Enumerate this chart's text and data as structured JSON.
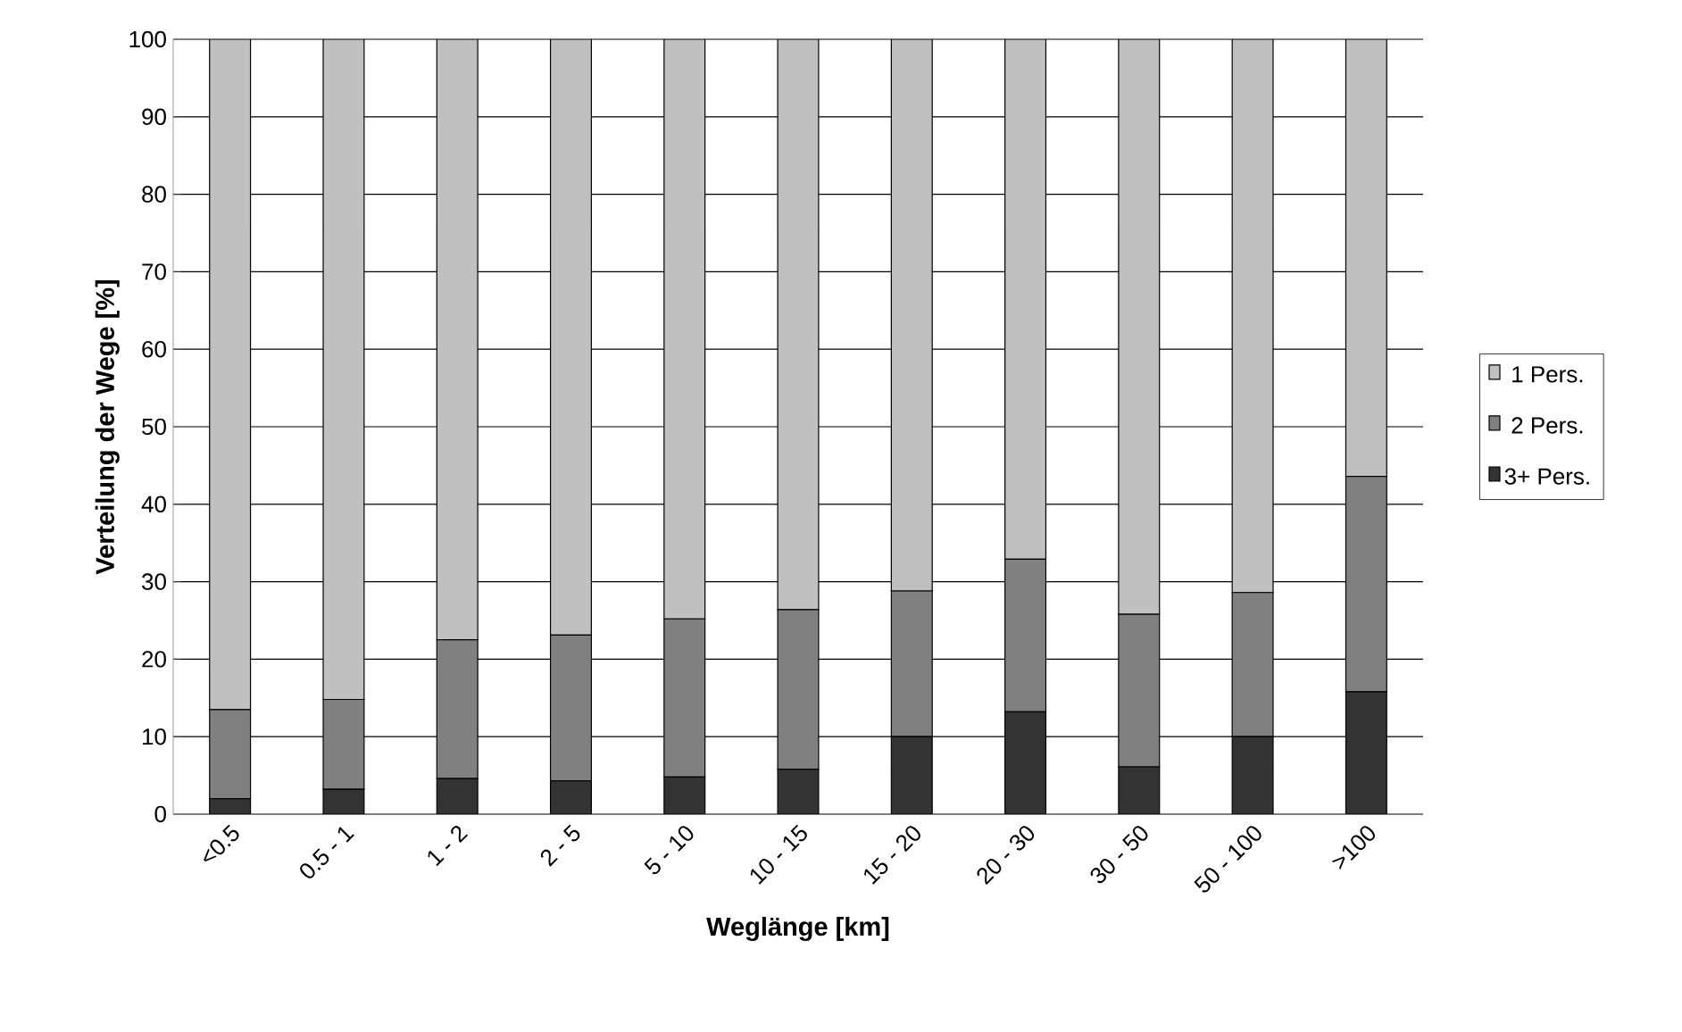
{
  "chart_data": {
    "type": "bar",
    "stacked": true,
    "xlabel": "Weglänge [km]",
    "ylabel": "Verteilung der Wege [%]",
    "categories": [
      "<0.5",
      "0.5 - 1",
      "1 - 2",
      "2 - 5",
      "5 - 10",
      "10 - 15",
      "15 - 20",
      "20 - 30",
      "30 - 50",
      "50 - 100",
      ">100"
    ],
    "series": [
      {
        "name": "3+ Pers.",
        "color": "#333333",
        "values": [
          2,
          3.2,
          4.6,
          4.3,
          4.8,
          5.8,
          10,
          13.2,
          6.1,
          10,
          15.8
        ]
      },
      {
        "name": "2 Pers.",
        "color": "#808080",
        "values": [
          11.5,
          11.6,
          17.9,
          18.8,
          20.4,
          20.6,
          18.8,
          19.7,
          19.7,
          18.6,
          27.8
        ]
      },
      {
        "name": "1 Pers.",
        "color": "#c0c0c0",
        "values": [
          86.5,
          85.2,
          77.5,
          76.9,
          74.8,
          73.6,
          71.2,
          67.1,
          74.2,
          71.4,
          56.4
        ]
      }
    ],
    "ylim": [
      0,
      100
    ],
    "yticks": [
      0,
      10,
      20,
      30,
      40,
      50,
      60,
      70,
      80,
      90,
      100
    ],
    "grid": "y",
    "legend": "right"
  }
}
